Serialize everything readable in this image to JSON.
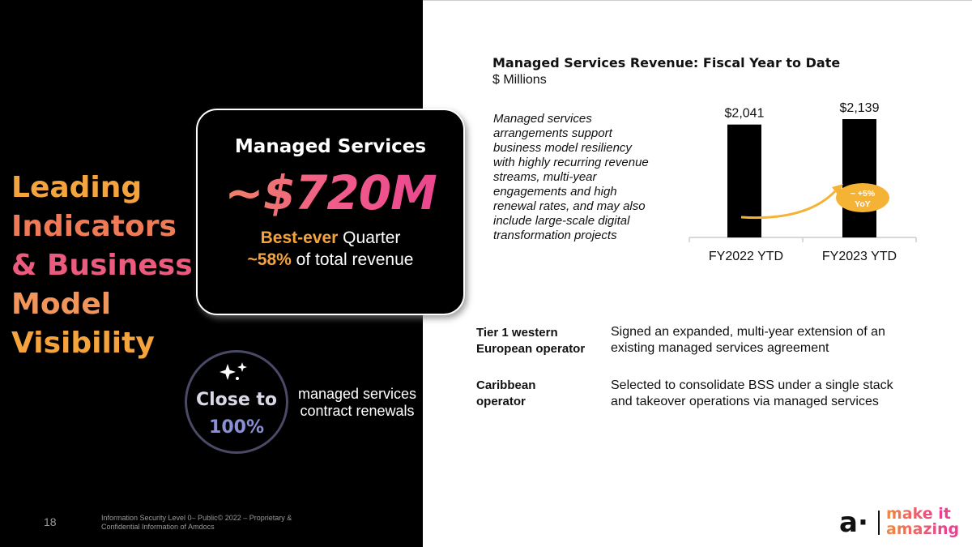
{
  "headline": {
    "lines": [
      "Leading",
      "Indicators",
      "& Business",
      "Model",
      "Visibility"
    ],
    "colors": [
      "#f5a33c",
      "#f07a55",
      "#ec5a7e",
      "#f2955a",
      "#f5a33c"
    ]
  },
  "managed_services_card": {
    "title": "Managed Services",
    "value": "~$720M",
    "line1_accent": "Best-ever",
    "line1_rest": " Quarter",
    "line2_accent": "~58%",
    "line2_rest": " of total revenue"
  },
  "renewals_badge": {
    "line1": "Close to",
    "line2": "100%",
    "icon": "sparkle-icon",
    "caption": "managed services contract renewals"
  },
  "footer": {
    "page_number": "18",
    "note": "Information Security Level 0– Public© 2022 – Proprietary & Confidential Information of Amdocs"
  },
  "chart_section": {
    "title": "Managed Services Revenue: Fiscal Year to Date",
    "unit": "$ Millions",
    "description": "Managed services arrangements support business model resiliency with highly recurring revenue streams, multi-year engagements and high renewal rates, and may also include large-scale digital transformation projects"
  },
  "chart_data": {
    "type": "bar",
    "categories": [
      "FY2022 YTD",
      "FY2023 YTD"
    ],
    "values": [
      2041,
      2139
    ],
    "value_labels": [
      "$2,041",
      "$2,139"
    ],
    "annotation": {
      "line1": "~ +5%",
      "line2": "YoY"
    },
    "bar_color": "#000000",
    "annotation_color": "#f5b335",
    "grid": false
  },
  "deals": [
    {
      "label": "Tier 1 western European operator",
      "text": "Signed an expanded, multi-year extension of an existing managed services agreement"
    },
    {
      "label": "Caribbean operator",
      "text": "Selected to consolidate BSS under a single stack and takeover operations via managed services"
    }
  ],
  "logo": {
    "mark": "a·",
    "line1": "make it",
    "line2": "amazing"
  }
}
